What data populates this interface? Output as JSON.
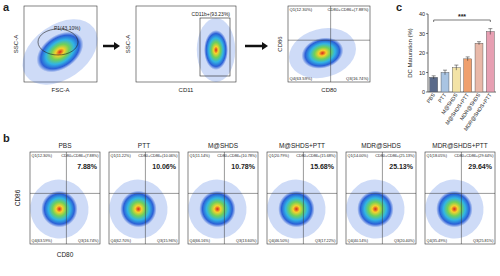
{
  "panel_labels": [
    "a",
    "b",
    "c"
  ],
  "chart_data": {
    "type": "bar",
    "y_label": "DC Maturation (%)",
    "categories": [
      "PBS",
      "PTT",
      "M@SHDS",
      "M@SHDS+PTT",
      "MDR@SHDS",
      "MDR@SHDS+PTT"
    ],
    "values": [
      7.5,
      10,
      12.5,
      17,
      25,
      31
    ],
    "errors": [
      0.8,
      1.2,
      1.3,
      1.0,
      0.8,
      1.5
    ],
    "colors": [
      "#5a6a8a",
      "#a9c4e2",
      "#f3e3a6",
      "#efa06e",
      "#e9b9a9",
      "#e79fb2"
    ],
    "ylim": [
      0,
      40
    ],
    "yticks": [
      0,
      10,
      20,
      30,
      40
    ],
    "annotations": [
      "***"
    ]
  },
  "panel_a": {
    "plots": [
      {
        "x_label": "FSC-A",
        "y_label": "SSC-A",
        "gate": "P1(43.10%)"
      },
      {
        "x_label": "CD11",
        "y_label": "SSC-A",
        "gate": "CD11b+(93.23%)"
      },
      {
        "x_label": "CD80",
        "y_label": "CD86",
        "quadrants": [
          "Q1(12.30%)",
          "CD80+CD86+(7.88%)",
          "Q4(63.59%)",
          "Q3(16.74%)"
        ]
      }
    ]
  },
  "panel_b": {
    "x_label": "CD80",
    "y_label": "CD86",
    "plots": [
      {
        "group": "PBS",
        "highlight": "7.88%",
        "quadrants": [
          "Q1(12.30%)",
          "CD80+CD86+(7.88%)",
          "Q4(63.59%)",
          "Q3(16.74%)"
        ]
      },
      {
        "group": "PTT",
        "highlight": "10.06%",
        "quadrants": [
          "Q1(11.22%)",
          "CD80+CD86+(10.06%)",
          "Q4(62.70%)",
          "Q3(15.96%)"
        ]
      },
      {
        "group": "M@SHDS",
        "highlight": "10.78%",
        "quadrants": [
          "Q1(11.14%)",
          "CD80+CD86+(10.78%)",
          "Q4(66.16%)",
          "Q3(13.60%)"
        ]
      },
      {
        "group": "M@SHDS+PTT",
        "highlight": "15.68%",
        "quadrants": [
          "Q1(20.79%)",
          "CD80+CD86+(15.68%)",
          "Q4(46.50%)",
          "Q3(17.22%)"
        ]
      },
      {
        "group": "MDR@SHDS",
        "highlight": "25.13%",
        "quadrants": [
          "Q1(14.00%)",
          "CD80+CD86+(25.13%)",
          "Q4(40.14%)",
          "Q3(20.40%)"
        ]
      },
      {
        "group": "MDR@SHDS+PTT",
        "highlight": "29.64%",
        "quadrants": [
          "Q1(18.05%)",
          "CD80+CD86+(29.64%)",
          "Q4(35.49%)",
          "Q3(25.81%)"
        ]
      }
    ]
  }
}
